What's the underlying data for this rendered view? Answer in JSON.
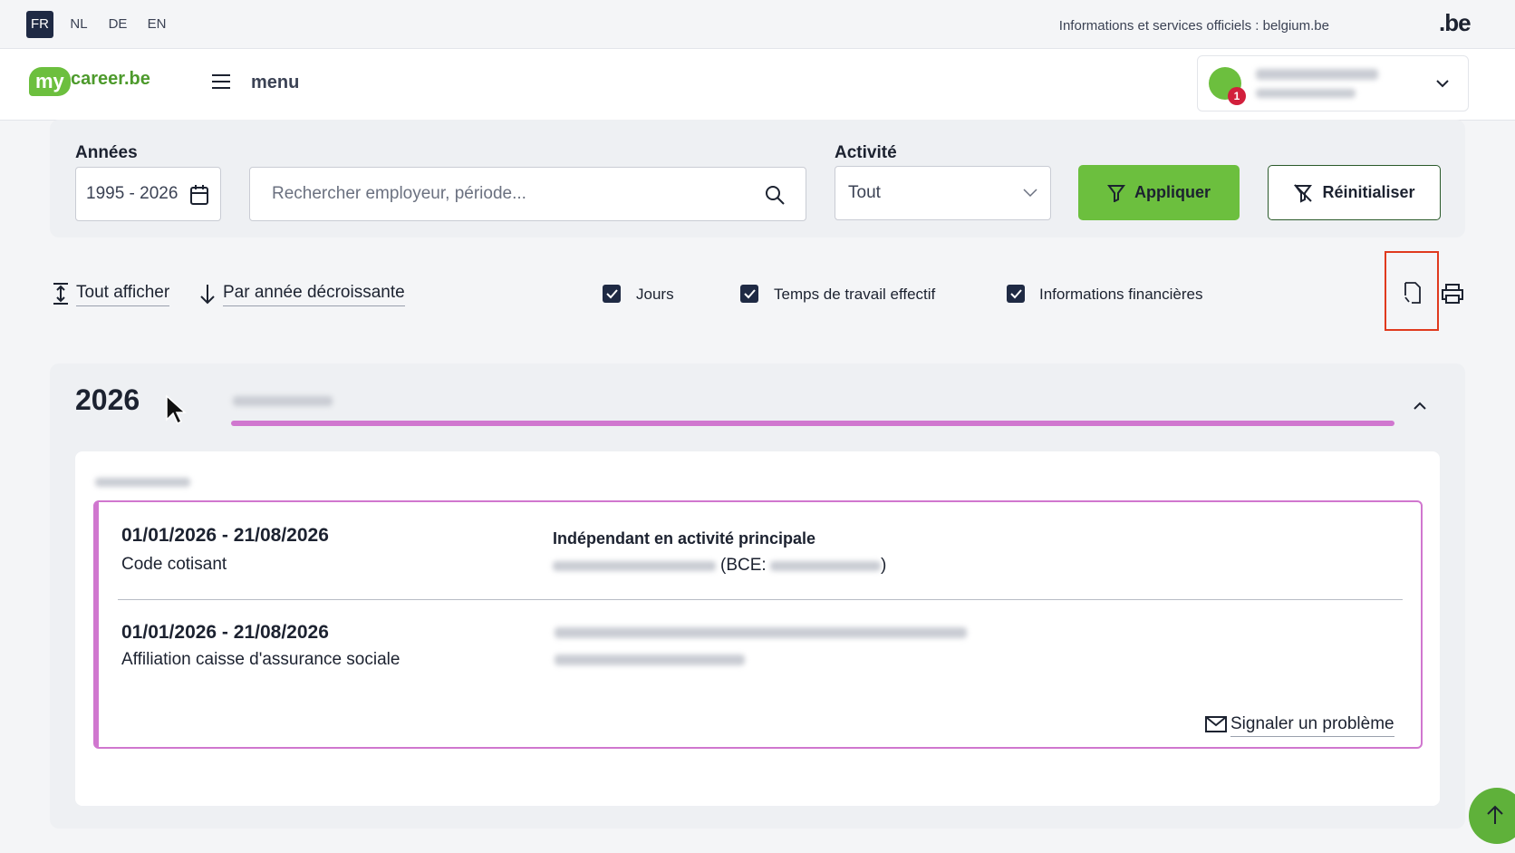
{
  "languages": [
    "FR",
    "NL",
    "DE",
    "EN"
  ],
  "header": {
    "official": "Informations et services officiels : belgium.be",
    "be_logo": ".be",
    "logo_my": "my",
    "logo_site": "career.be",
    "menu": "menu",
    "notifications": "1"
  },
  "filters": {
    "years_label": "Années",
    "years_value": "1995 - 2026",
    "search_placeholder": "Rechercher employeur, période...",
    "activity_label": "Activité",
    "activity_value": "Tout",
    "apply": "Appliquer",
    "reset": "Réinitialiser"
  },
  "toolbar": {
    "show_all": "Tout afficher",
    "sort": "Par année décroissante",
    "checkboxes": [
      "Jours",
      "Temps de travail effectif",
      "Informations financières"
    ]
  },
  "year_section": {
    "year": "2026",
    "entries": [
      {
        "dates": "01/01/2026 - 21/08/2026",
        "label": "Code cotisant",
        "title": "Indépendant en activité principale",
        "detail": "(BCE:",
        "detail_end": ")"
      },
      {
        "dates": "01/01/2026 - 21/08/2026",
        "label": "Affiliation caisse d'assurance sociale"
      }
    ],
    "report": "Signaler un problème"
  }
}
